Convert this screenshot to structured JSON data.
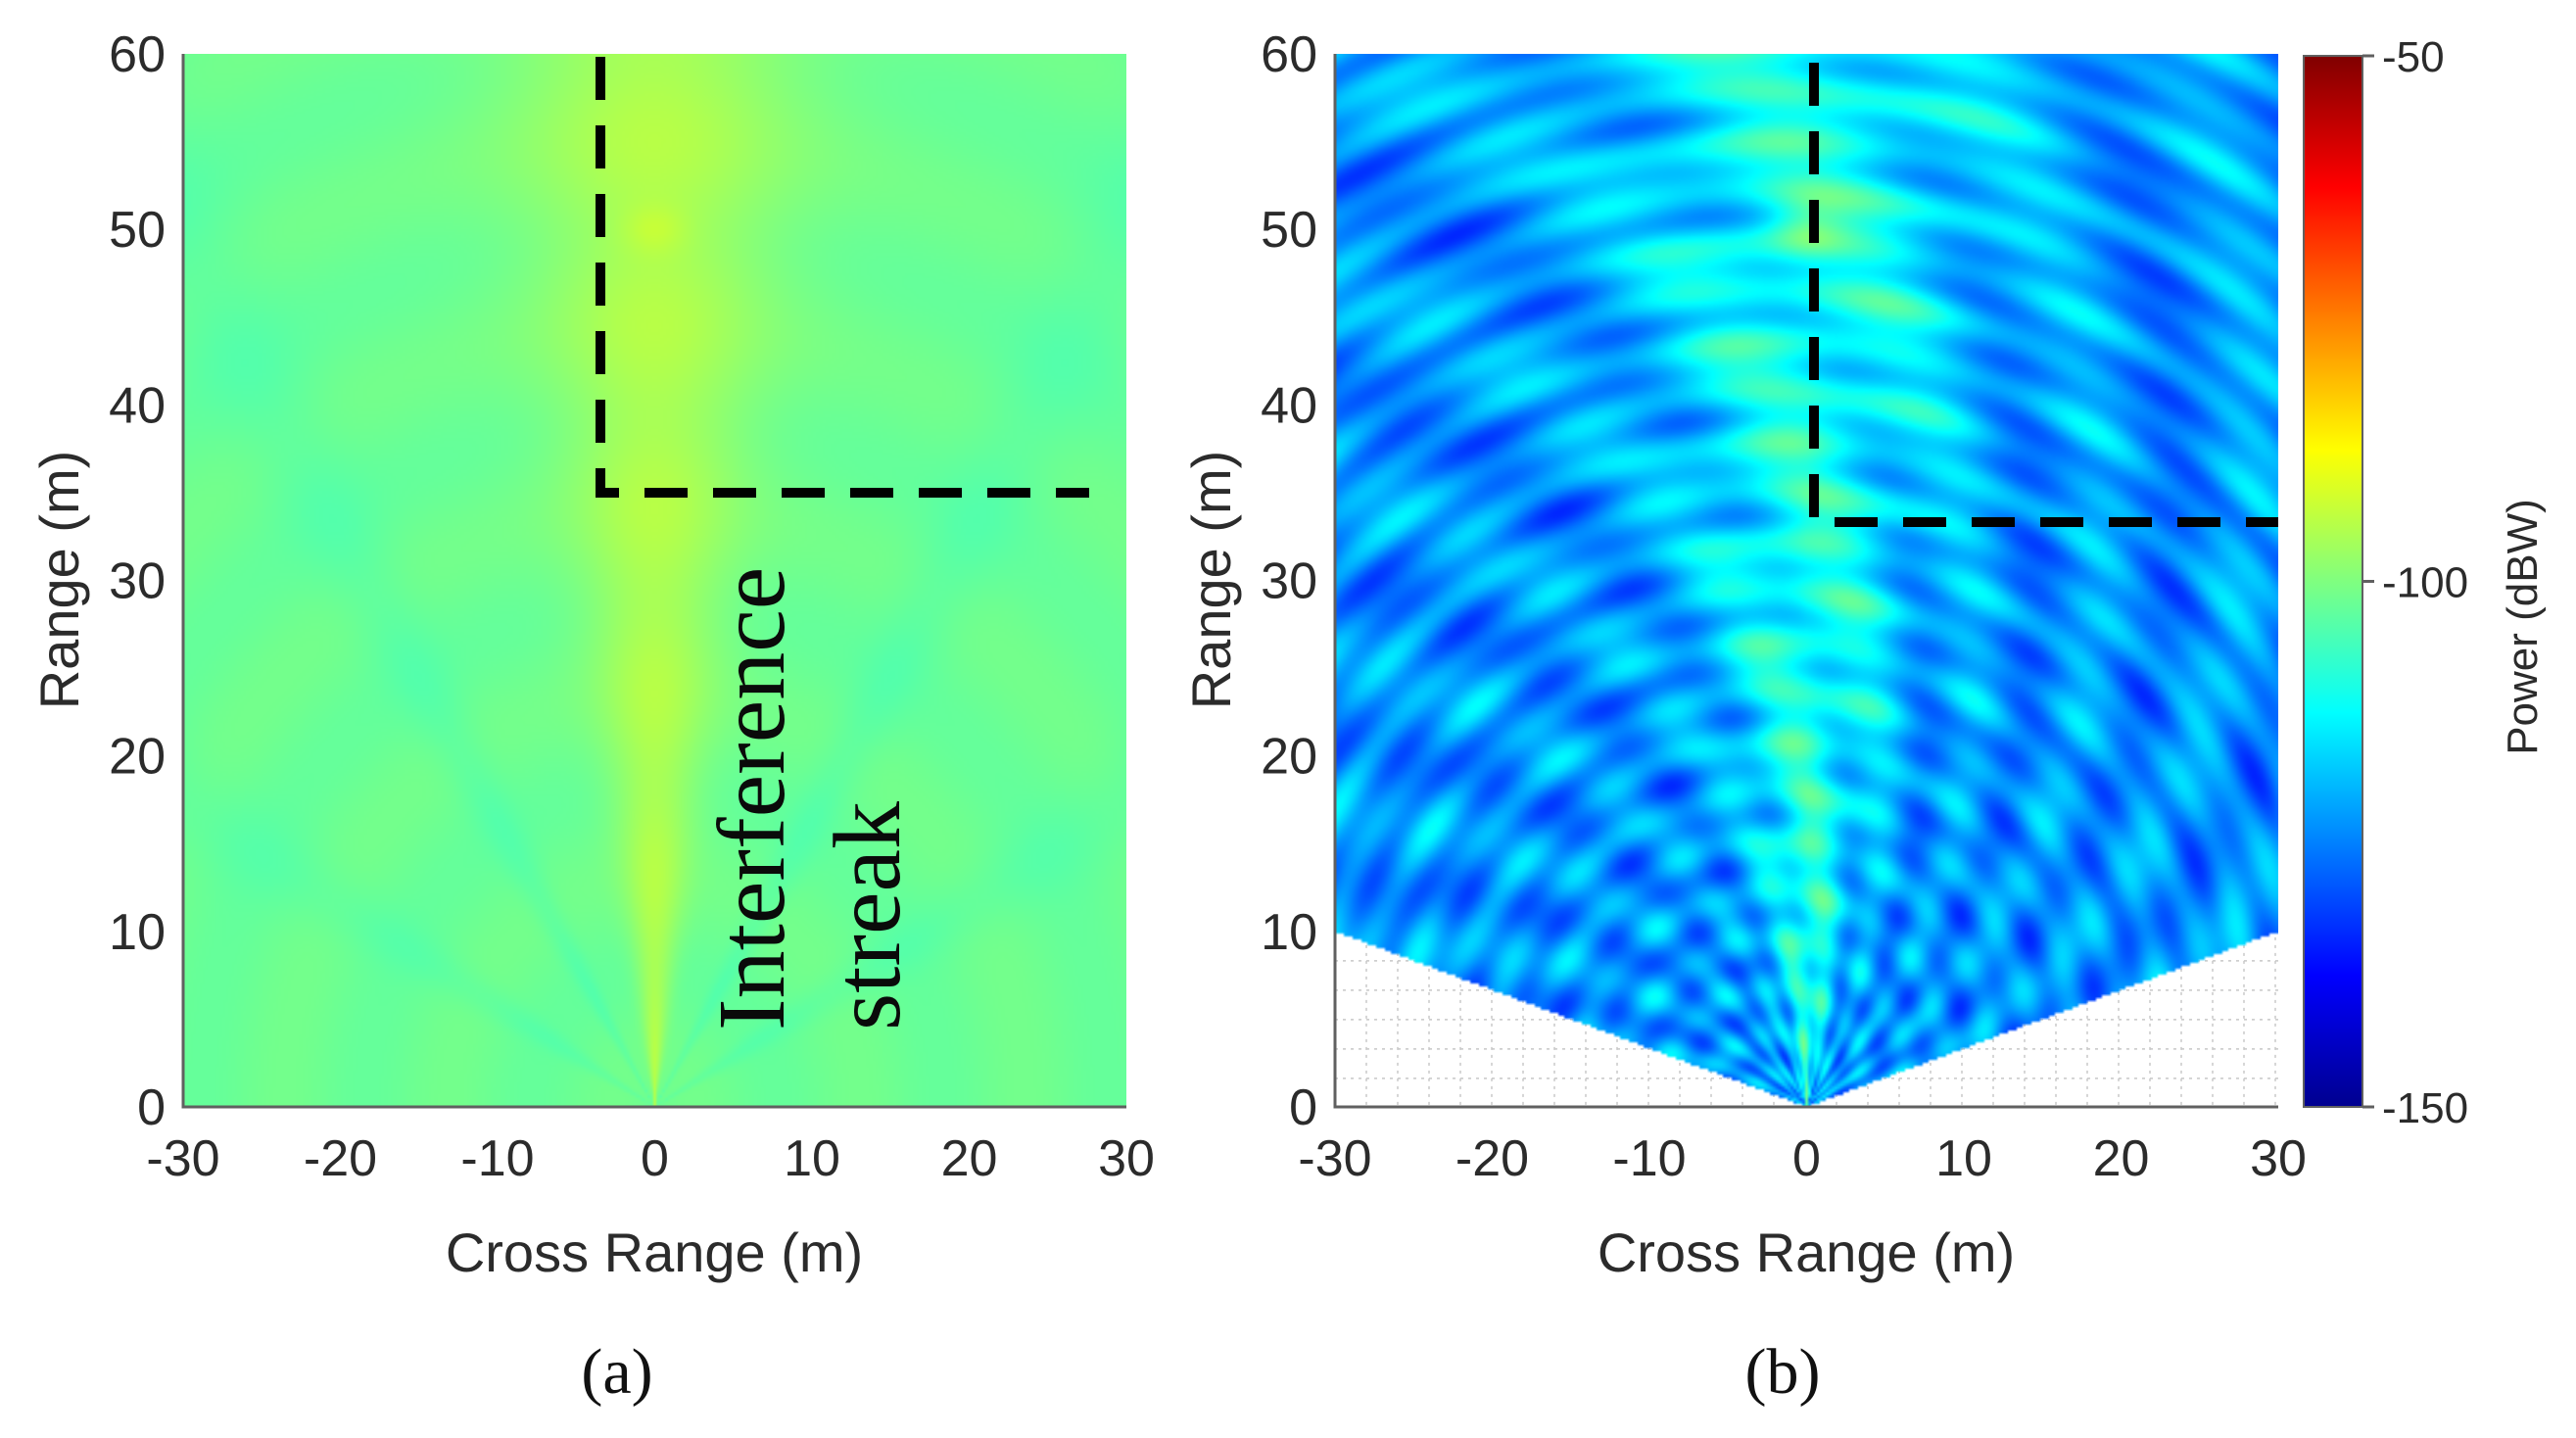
{
  "figure": {
    "panels": [
      {
        "id": "a",
        "label": "(a)"
      },
      {
        "id": "b",
        "label": "(b)"
      }
    ]
  },
  "annotation": {
    "line1": "Interference",
    "line2": "streak"
  },
  "colors": {
    "colormap": "jet",
    "dashed_box": "#000000",
    "axis": "#606060",
    "text": "#2b2b2b"
  },
  "chart_data": [
    {
      "type": "heatmap",
      "panel": "(a)",
      "title": "",
      "xlabel": "Cross Range (m)",
      "ylabel": "Range (m)",
      "xlim": [
        -30,
        30
      ],
      "ylim": [
        0,
        60
      ],
      "xticks": [
        -30,
        -20,
        -10,
        0,
        10,
        20,
        30
      ],
      "yticks": [
        0,
        10,
        20,
        30,
        40,
        50,
        60
      ],
      "target": {
        "cross_range": 0,
        "range": 50
      },
      "power_range_dbw": [
        -112,
        -88
      ],
      "streak_angles_deg": [
        0,
        22,
        45,
        63
      ],
      "region_of_interest": {
        "corner_cross_range": -3.5,
        "corner_range": 35,
        "extends_to": {
          "cross_range": 30,
          "range": 60
        }
      },
      "annotations": [
        "Interference",
        "streak"
      ]
    },
    {
      "type": "heatmap",
      "panel": "(b)",
      "title": "",
      "xlabel": "Cross Range (m)",
      "ylabel": "Range (m)",
      "xlim": [
        -30,
        30
      ],
      "ylim": [
        0,
        60
      ],
      "xticks": [
        -30,
        -20,
        -10,
        0,
        10,
        20,
        30
      ],
      "yticks": [
        0,
        10,
        20,
        30,
        40,
        50,
        60
      ],
      "target": {
        "cross_range": 0,
        "range": 50
      },
      "power_range_dbw": [
        -135,
        -95
      ],
      "valid_region": {
        "apex": [
          0,
          0
        ],
        "edge_at_xlim_range": 10
      },
      "region_of_interest": {
        "corner_cross_range": 0,
        "corner_range": 33,
        "extends_to": {
          "cross_range": 30,
          "range": 60
        }
      },
      "colorbar": {
        "label": "Power (dBW)",
        "min": -150,
        "max": -50,
        "ticks": [
          -50,
          -100,
          -150
        ]
      }
    }
  ]
}
